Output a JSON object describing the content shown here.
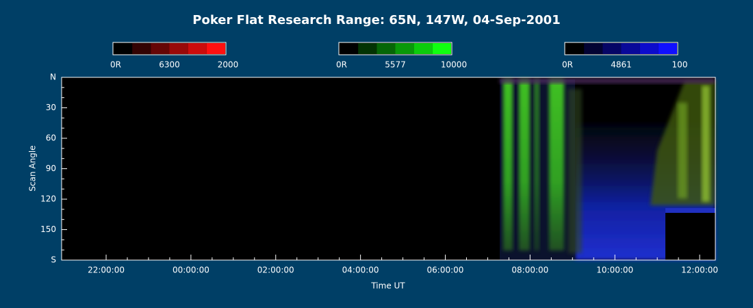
{
  "chart_data": {
    "type": "keogram",
    "title": "Poker Flat Research Range: 65N, 147W, 04-Sep-2001",
    "x_label": "Time UT",
    "y_label": "Scan Angle",
    "xlim": [
      -3.05,
      12.37
    ],
    "xticks": [
      {
        "value": -2,
        "label": "22:00:00"
      },
      {
        "value": 0,
        "label": "00:00:00"
      },
      {
        "value": 2,
        "label": "02:00:00"
      },
      {
        "value": 4,
        "label": "04:00:00"
      },
      {
        "value": 6,
        "label": "06:00:00"
      },
      {
        "value": 8,
        "label": "08:00:00"
      },
      {
        "value": 10,
        "label": "10:00:00"
      },
      {
        "value": 12,
        "label": "12:00:00"
      }
    ],
    "ylim": [
      0,
      180
    ],
    "yticks": [
      {
        "value": 0,
        "label": "N"
      },
      30,
      60,
      90,
      120,
      150,
      {
        "value": 180,
        "label": "S"
      }
    ],
    "colorbars": [
      {
        "name": "6300",
        "min_label": "0R",
        "max": 2000,
        "color": "#ff1010"
      },
      {
        "name": "5577",
        "min_label": "0R",
        "max": 10000,
        "color": "#10ff10"
      },
      {
        "name": "4861",
        "min_label": "0R",
        "max": 100,
        "color": "#1010ff"
      }
    ]
  }
}
